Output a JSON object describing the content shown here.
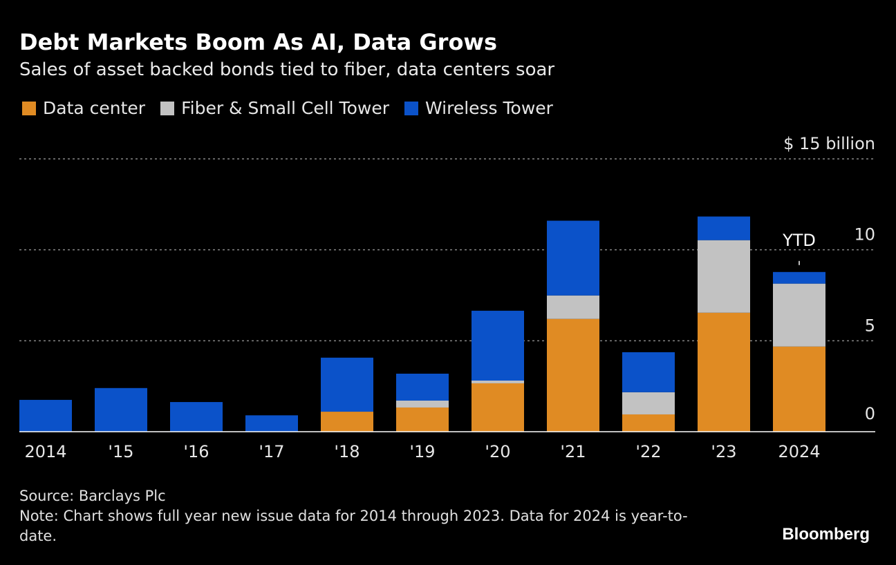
{
  "chart_data": {
    "type": "bar",
    "stacked": true,
    "title": "Debt Markets Boom As AI, Data Grows",
    "subtitle": "Sales of asset backed bonds tied to fiber, data centers soar",
    "categories": [
      "2014",
      "'15",
      "'16",
      "'17",
      "'18",
      "'19",
      "'20",
      "'21",
      "'22",
      "'23",
      "2024"
    ],
    "series": [
      {
        "name": "Data center",
        "color": "#e08b23",
        "values": [
          0,
          0,
          0,
          0,
          1.1,
          1.33,
          2.66,
          6.2,
          0.95,
          6.54,
          4.68
        ]
      },
      {
        "name": "Fiber & Small Cell Tower",
        "color": "#c2c2c2",
        "values": [
          0,
          0,
          0,
          0,
          0,
          0.38,
          0.15,
          1.29,
          1.22,
          3.99,
          3.46
        ]
      },
      {
        "name": "Wireless Tower",
        "color": "#0b52c9",
        "values": [
          1.75,
          2.4,
          1.63,
          0.9,
          2.97,
          1.48,
          3.84,
          4.11,
          2.2,
          1.3,
          0.64
        ]
      }
    ],
    "ylim": [
      0,
      15
    ],
    "yticks": [
      {
        "value": 15,
        "label": "$ 15 billion"
      },
      {
        "value": 10,
        "label": "10"
      },
      {
        "value": 5,
        "label": "5"
      },
      {
        "value": 0,
        "label": "0"
      }
    ],
    "grid": true,
    "y_axis_side": "right",
    "legend_position": "top-left",
    "annotation": {
      "category": "2024",
      "text": "YTD"
    }
  },
  "footer": {
    "source": "Source: Barclays Plc",
    "note": "Note: Chart shows full year new issue data for 2014 through 2023. Data for 2024 is year-to-date.",
    "logo": "Bloomberg"
  }
}
